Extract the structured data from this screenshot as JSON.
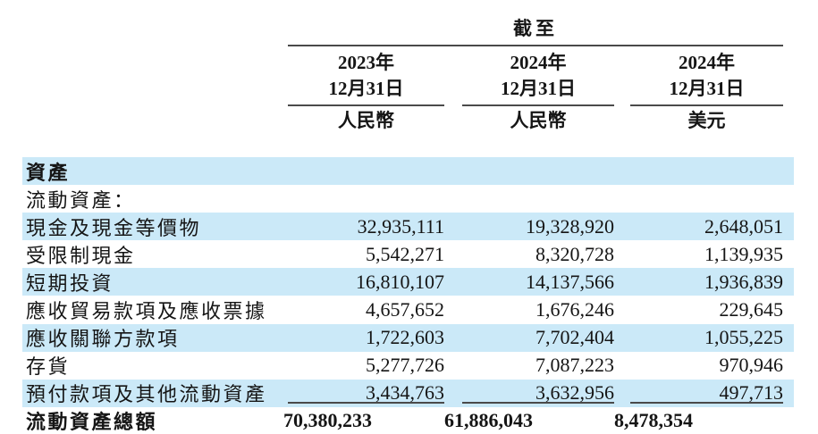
{
  "header": {
    "as_of_label": "截至",
    "columns": [
      {
        "year": "2023年",
        "date": "12月31日",
        "currency": "人民幣"
      },
      {
        "year": "2024年",
        "date": "12月31日",
        "currency": "人民幣"
      },
      {
        "year": "2024年",
        "date": "12月31日",
        "currency": "美元"
      }
    ]
  },
  "table": {
    "rows": [
      {
        "label": "資產",
        "values": [
          "",
          "",
          ""
        ],
        "highlight": true,
        "bold": true
      },
      {
        "label": "流動資產：",
        "values": [
          "",
          "",
          ""
        ],
        "highlight": false,
        "bold": false
      },
      {
        "label": "現金及現金等價物",
        "values": [
          "32,935,111",
          "19,328,920",
          "2,648,051"
        ],
        "highlight": true,
        "bold": false
      },
      {
        "label": "受限制現金",
        "values": [
          "5,542,271",
          "8,320,728",
          "1,139,935"
        ],
        "highlight": false,
        "bold": false
      },
      {
        "label": "短期投資",
        "values": [
          "16,810,107",
          "14,137,566",
          "1,936,839"
        ],
        "highlight": true,
        "bold": false
      },
      {
        "label": "應收貿易款項及應收票據",
        "values": [
          "4,657,652",
          "1,676,246",
          "229,645"
        ],
        "highlight": false,
        "bold": false
      },
      {
        "label": "應收關聯方款項",
        "values": [
          "1,722,603",
          "7,702,404",
          "1,055,225"
        ],
        "highlight": true,
        "bold": false
      },
      {
        "label": "存貨",
        "values": [
          "5,277,726",
          "7,087,223",
          "970,946"
        ],
        "highlight": false,
        "bold": false
      },
      {
        "label": "預付款項及其他流動資產",
        "values": [
          "3,434,763",
          "3,632,956",
          "497,713"
        ],
        "highlight": true,
        "bold": false
      }
    ],
    "total": {
      "label": "流動資產總額",
      "values": [
        "70,380,233",
        "61,886,043",
        "8,478,354"
      ]
    }
  },
  "colors": {
    "highlight": "#cbe9f8",
    "rule": "#4a4a4a",
    "text": "#151515"
  }
}
